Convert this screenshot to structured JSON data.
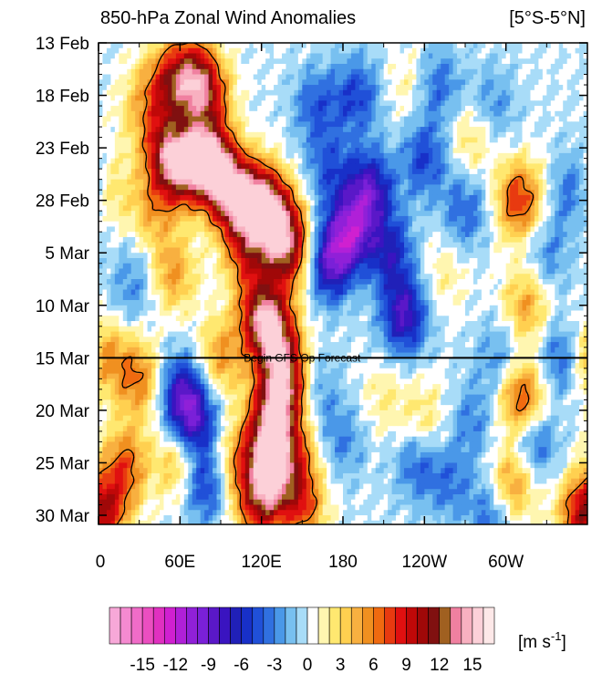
{
  "chart_data": {
    "type": "heatmap",
    "title": "850-hPa Zonal Wind Anomalies",
    "region": "[5°S-5°N]",
    "xlabel": "",
    "ylabel": "",
    "x_tick_labels": [
      "0",
      "60E",
      "120E",
      "180",
      "120W",
      "60W"
    ],
    "x_ticks_deg_east": [
      0,
      60,
      120,
      180,
      240,
      300
    ],
    "x_range_deg_east": [
      0,
      360
    ],
    "y_tick_labels": [
      "13 Feb",
      "18 Feb",
      "23 Feb",
      "28 Feb",
      "5 Mar",
      "10 Mar",
      "15 Mar",
      "20 Mar",
      "25 Mar",
      "30 Mar"
    ],
    "y_ticks_day": [
      0,
      5,
      10,
      15,
      20,
      25,
      30,
      35,
      40,
      45
    ],
    "y_range_day": [
      0,
      45
    ],
    "forecast_line": {
      "label": "Begin GFS Op Forecast",
      "day": 30
    },
    "contour_level": 6,
    "colorbar": {
      "units_label": "[m s",
      "units_exponent": "-1",
      "units_close": "]",
      "tick_labels": [
        "-15",
        "-12",
        "-9",
        "-6",
        "-3",
        "0",
        "3",
        "6",
        "9",
        "12",
        "15"
      ],
      "tick_values": [
        -15,
        -12,
        -9,
        -6,
        -3,
        0,
        3,
        6,
        9,
        12,
        15
      ],
      "bins": [
        -17,
        -16,
        -15,
        -14,
        -13,
        -12,
        -11,
        -10,
        -9,
        -8,
        -7,
        -6,
        -5,
        -4,
        -3,
        -2,
        -1,
        0,
        1,
        2,
        3,
        4,
        5,
        6,
        7,
        8,
        9,
        10,
        11,
        12,
        13,
        14,
        15
      ],
      "colors": [
        "#f7a8d8",
        "#f58ad0",
        "#f06cc8",
        "#eb4ec0",
        "#e030c0",
        "#d020d0",
        "#b020d8",
        "#9020d8",
        "#7a20d8",
        "#5a18c8",
        "#3a14c0",
        "#2020b8",
        "#1830c8",
        "#2050d8",
        "#3070e0",
        "#4a98e8",
        "#78c0f0",
        "#a8dcf8",
        "#ffffff",
        "#fff6b0",
        "#ffe870",
        "#ffd050",
        "#f8b040",
        "#f09020",
        "#f06a10",
        "#e83a10",
        "#e01010",
        "#c00808",
        "#a00808",
        "#801010",
        "#a06020",
        "#f080a0",
        "#f8b0c0",
        "#fcd0d8",
        "#fde8e8"
      ]
    },
    "blobs": [
      {
        "lon": 50,
        "day": 4,
        "v": 7
      },
      {
        "lon": 68,
        "day": 3,
        "v": 9
      },
      {
        "lon": 80,
        "day": 5,
        "v": 8
      },
      {
        "lon": 48,
        "day": 10,
        "v": 7
      },
      {
        "lon": 58,
        "day": 12,
        "v": 9
      },
      {
        "lon": 75,
        "day": 11,
        "v": 10
      },
      {
        "lon": 88,
        "day": 12,
        "v": 11
      },
      {
        "lon": 100,
        "day": 15,
        "v": 10
      },
      {
        "lon": 118,
        "day": 15,
        "v": 11
      },
      {
        "lon": 132,
        "day": 17,
        "v": 10
      },
      {
        "lon": 140,
        "day": 20,
        "v": 9
      },
      {
        "lon": 110,
        "day": 20,
        "v": 7
      },
      {
        "lon": 40,
        "day": 16,
        "v": 4
      },
      {
        "lon": 55,
        "day": 22,
        "v": 5
      },
      {
        "lon": 30,
        "day": 6,
        "v": 3
      },
      {
        "lon": 120,
        "day": 26,
        "v": 10
      },
      {
        "lon": 130,
        "day": 28,
        "v": 9
      },
      {
        "lon": 138,
        "day": 32,
        "v": 10
      },
      {
        "lon": 130,
        "day": 35,
        "v": 9
      },
      {
        "lon": 122,
        "day": 38,
        "v": 7
      },
      {
        "lon": 128,
        "day": 41,
        "v": 10
      },
      {
        "lon": 118,
        "day": 44,
        "v": 8
      },
      {
        "lon": 100,
        "day": 40,
        "v": 4
      },
      {
        "lon": 90,
        "day": 30,
        "v": 5
      },
      {
        "lon": 60,
        "day": 40,
        "v": 5
      },
      {
        "lon": 20,
        "day": 40,
        "v": 6
      },
      {
        "lon": 10,
        "day": 44,
        "v": 5
      },
      {
        "lon": 30,
        "day": 32,
        "v": 6
      },
      {
        "lon": 5,
        "day": 30,
        "v": 5
      },
      {
        "lon": 150,
        "day": 44,
        "v": 7
      },
      {
        "lon": 145,
        "day": 39,
        "v": 5
      },
      {
        "lon": 310,
        "day": 15,
        "v": 8
      },
      {
        "lon": 315,
        "day": 25,
        "v": 5
      },
      {
        "lon": 312,
        "day": 34,
        "v": 8
      },
      {
        "lon": 305,
        "day": 42,
        "v": 6
      },
      {
        "lon": 240,
        "day": 36,
        "v": 3
      },
      {
        "lon": 210,
        "day": 34,
        "v": 2
      },
      {
        "lon": 275,
        "day": 9,
        "v": 3
      },
      {
        "lon": 255,
        "day": 22,
        "v": 2
      },
      {
        "lon": 230,
        "day": 4,
        "v": 2
      },
      {
        "lon": 355,
        "day": 45,
        "v": 8
      },
      {
        "lon": 8,
        "day": 14,
        "v": 3
      },
      {
        "lon": 160,
        "day": 6,
        "v": -4
      },
      {
        "lon": 190,
        "day": 5,
        "v": -5
      },
      {
        "lon": 170,
        "day": 12,
        "v": -4
      },
      {
        "lon": 200,
        "day": 14,
        "v": -8
      },
      {
        "lon": 185,
        "day": 18,
        "v": -9
      },
      {
        "lon": 170,
        "day": 21,
        "v": -8
      },
      {
        "lon": 215,
        "day": 20,
        "v": -6
      },
      {
        "lon": 225,
        "day": 26,
        "v": -8
      },
      {
        "lon": 240,
        "day": 11,
        "v": -5
      },
      {
        "lon": 250,
        "day": 4,
        "v": -4
      },
      {
        "lon": 270,
        "day": 16,
        "v": -4
      },
      {
        "lon": 70,
        "day": 36,
        "v": -8
      },
      {
        "lon": 60,
        "day": 33,
        "v": -6
      },
      {
        "lon": 78,
        "day": 42,
        "v": -6
      },
      {
        "lon": 25,
        "day": 23,
        "v": -3
      },
      {
        "lon": 160,
        "day": 33,
        "v": -3
      },
      {
        "lon": 180,
        "day": 38,
        "v": -3
      },
      {
        "lon": 235,
        "day": 40,
        "v": -4
      },
      {
        "lon": 290,
        "day": 45,
        "v": -4
      },
      {
        "lon": 320,
        "day": 38,
        "v": -5
      },
      {
        "lon": 340,
        "day": 30,
        "v": -4
      },
      {
        "lon": 330,
        "day": 20,
        "v": -3
      },
      {
        "lon": 350,
        "day": 14,
        "v": -4
      },
      {
        "lon": 290,
        "day": 6,
        "v": -3
      },
      {
        "lon": 295,
        "day": 30,
        "v": -3
      },
      {
        "lon": 275,
        "day": 36,
        "v": -3
      },
      {
        "lon": 260,
        "day": 42,
        "v": -3
      }
    ]
  }
}
